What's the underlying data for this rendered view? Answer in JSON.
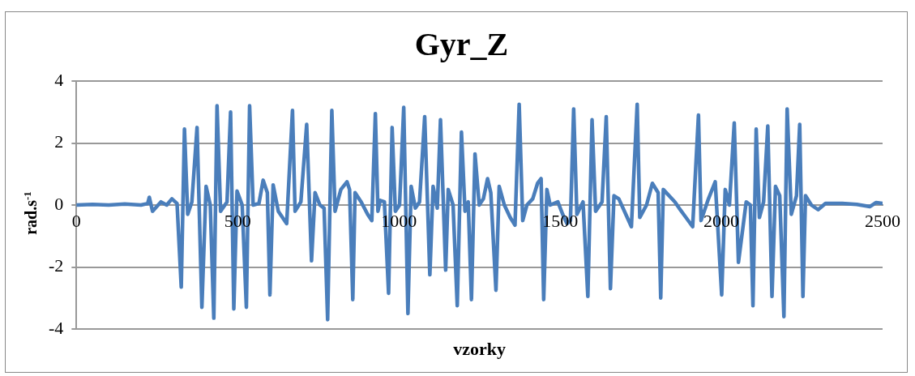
{
  "chart_data": {
    "type": "line",
    "title": "Gyr_Z",
    "xlabel": "vzorky",
    "ylabel": "rad.s$^{-1}$",
    "xlim": [
      0,
      2500
    ],
    "xticks": [
      0,
      500,
      1000,
      1500,
      2000,
      2500
    ],
    "ylim": [
      -4,
      4
    ],
    "yticks": [
      -4,
      -2,
      0,
      2,
      4
    ],
    "grid": "y",
    "legend": false,
    "marker": "none",
    "line_style": "solid",
    "series": [
      {
        "color": "#4a7ebb",
        "x": [
          0,
          50,
          100,
          150,
          200,
          221,
          226,
          236,
          262,
          280,
          296,
          312,
          325,
          335,
          345,
          358,
          374,
          389,
          402,
          415,
          426,
          436,
          447,
          467,
          478,
          488,
          498,
          514,
          527,
          537,
          548,
          566,
          579,
          592,
          600,
          610,
          626,
          652,
          670,
          678,
          696,
          714,
          729,
          740,
          755,
          768,
          779,
          792,
          802,
          820,
          839,
          847,
          857,
          864,
          883,
          903,
          916,
          927,
          935,
          942,
          955,
          968,
          979,
          989,
          1002,
          1015,
          1028,
          1038,
          1051,
          1064,
          1080,
          1096,
          1106,
          1119,
          1129,
          1145,
          1153,
          1168,
          1181,
          1194,
          1205,
          1215,
          1225,
          1236,
          1249,
          1262,
          1275,
          1285,
          1301,
          1311,
          1327,
          1345,
          1360,
          1373,
          1384,
          1397,
          1415,
          1430,
          1441,
          1449,
          1459,
          1469,
          1493,
          1508,
          1521,
          1532,
          1542,
          1552,
          1571,
          1586,
          1599,
          1610,
          1630,
          1643,
          1656,
          1667,
          1682,
          1721,
          1739,
          1747,
          1768,
          1786,
          1804,
          1812,
          1820,
          1856,
          1869,
          1890,
          1911,
          1929,
          1937,
          1960,
          1981,
          2001,
          2012,
          2025,
          2040,
          2053,
          2077,
          2090,
          2098,
          2108,
          2118,
          2131,
          2144,
          2157,
          2168,
          2181,
          2194,
          2204,
          2217,
          2233,
          2243,
          2253,
          2261,
          2279,
          2300,
          2323,
          2375,
          2420,
          2461,
          2480,
          2500
        ],
        "values": [
          0,
          0.02,
          0,
          0.03,
          0,
          0.05,
          0.25,
          -0.2,
          0.1,
          0,
          0.2,
          0.05,
          -2.65,
          2.45,
          -0.3,
          0.1,
          2.5,
          -3.3,
          0.6,
          0,
          -3.65,
          3.2,
          -0.2,
          0.1,
          3.0,
          -3.35,
          0.45,
          0,
          -3.3,
          3.2,
          0,
          0.05,
          0.8,
          0.4,
          -2.9,
          0.65,
          -0.2,
          -0.6,
          3.05,
          -0.2,
          0.1,
          2.6,
          -1.8,
          0.4,
          0,
          -0.1,
          -3.7,
          3.05,
          -0.2,
          0.5,
          0.75,
          0.5,
          -3.05,
          0.4,
          0.1,
          -0.3,
          -0.5,
          2.95,
          -0.2,
          0.15,
          0.1,
          -2.85,
          2.5,
          -0.2,
          0,
          3.15,
          -3.5,
          0.6,
          -0.1,
          0.1,
          2.85,
          -2.25,
          0.6,
          -0.1,
          2.75,
          -2.1,
          0.5,
          0,
          -3.25,
          2.35,
          -0.2,
          0.1,
          -3.05,
          1.65,
          0,
          0.2,
          0.85,
          0.4,
          -2.75,
          0.6,
          0,
          -0.4,
          -0.65,
          3.25,
          -0.5,
          0,
          0.2,
          0.7,
          0.85,
          -3.05,
          0.5,
          0,
          0.1,
          -0.3,
          -0.6,
          -0.5,
          3.1,
          -0.3,
          0.1,
          -2.95,
          2.75,
          -0.2,
          0.1,
          2.85,
          -2.7,
          0.3,
          0.2,
          -0.7,
          3.25,
          -0.4,
          0,
          0.7,
          0.4,
          -3.0,
          0.5,
          0.1,
          -0.1,
          -0.4,
          -0.7,
          2.9,
          -0.5,
          0.2,
          0.75,
          -2.9,
          0.5,
          0,
          2.65,
          -1.85,
          0.1,
          0,
          -3.25,
          2.45,
          -0.4,
          0.1,
          2.55,
          -2.95,
          0.6,
          0.3,
          -3.6,
          3.1,
          -0.3,
          0.3,
          2.6,
          -2.95,
          0.3,
          0,
          -0.15,
          0.05,
          0.05,
          0.02,
          -0.05,
          0.08,
          0.05
        ]
      }
    ]
  }
}
